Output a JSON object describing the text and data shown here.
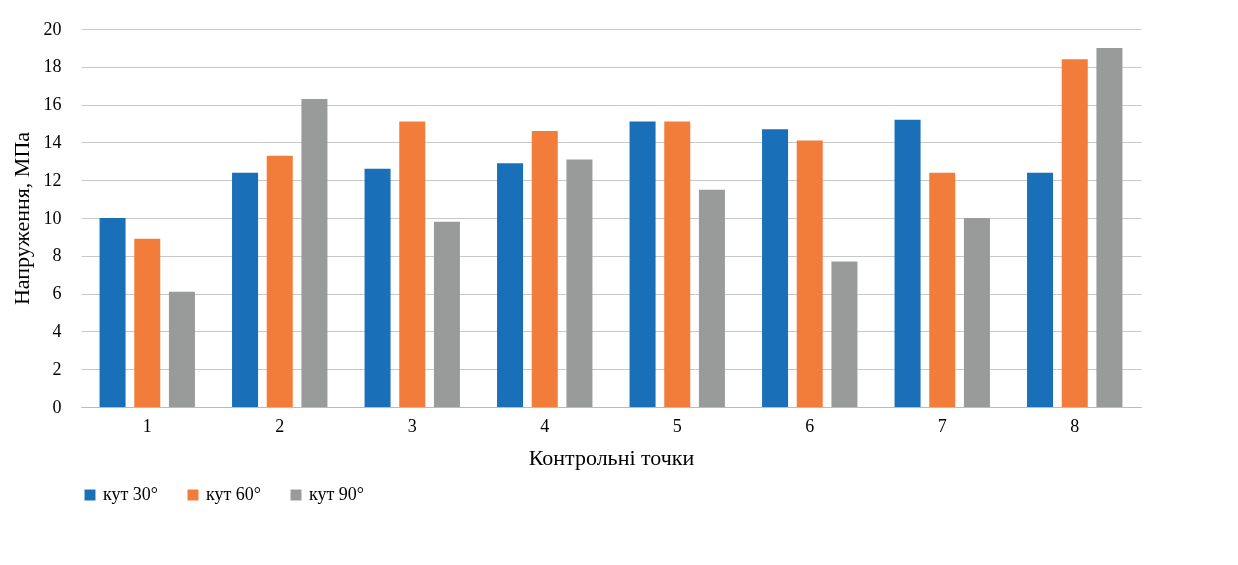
{
  "chart_data": {
    "type": "bar",
    "xlabel": "Контрольні точки",
    "ylabel": "Напруження, МПа",
    "categories": [
      "1",
      "2",
      "3",
      "4",
      "5",
      "6",
      "7",
      "8"
    ],
    "series": [
      {
        "name": "кут 30°",
        "color": "#1a70b8",
        "values": [
          10.0,
          12.4,
          12.6,
          12.9,
          15.1,
          14.7,
          15.2,
          12.4
        ]
      },
      {
        "name": "кут 60°",
        "color": "#f27d3a",
        "values": [
          8.9,
          13.3,
          15.1,
          14.6,
          15.1,
          14.1,
          12.4,
          18.4
        ]
      },
      {
        "name": "кут 90°",
        "color": "#999b9b",
        "values": [
          6.1,
          16.3,
          9.8,
          13.1,
          11.5,
          7.7,
          10.0,
          19.0
        ]
      }
    ],
    "ylim": [
      0,
      20
    ],
    "yticks": [
      0,
      2,
      4,
      6,
      8,
      10,
      12,
      14,
      16,
      18,
      20
    ],
    "grid": "y",
    "legend": "bottom"
  }
}
